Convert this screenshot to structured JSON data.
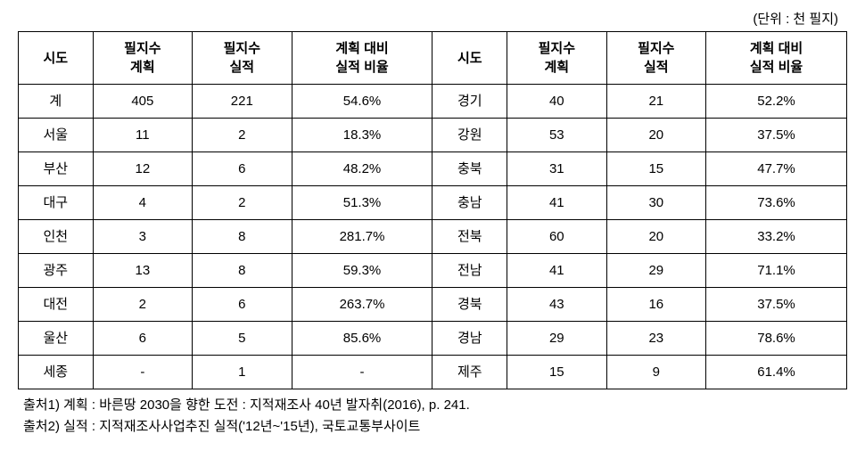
{
  "unitLabel": "(단위 : 천 필지)",
  "headers": {
    "sido": "시도",
    "plan": "필지수\n계획",
    "actual": "필지수\n실적",
    "ratio": "계획 대비\n실적 비율"
  },
  "rows": [
    {
      "l_sido": "계",
      "l_plan": "405",
      "l_actual": "221",
      "l_ratio": "54.6%",
      "r_sido": "경기",
      "r_plan": "40",
      "r_actual": "21",
      "r_ratio": "52.2%"
    },
    {
      "l_sido": "서울",
      "l_plan": "11",
      "l_actual": "2",
      "l_ratio": "18.3%",
      "r_sido": "강원",
      "r_plan": "53",
      "r_actual": "20",
      "r_ratio": "37.5%"
    },
    {
      "l_sido": "부산",
      "l_plan": "12",
      "l_actual": "6",
      "l_ratio": "48.2%",
      "r_sido": "충북",
      "r_plan": "31",
      "r_actual": "15",
      "r_ratio": "47.7%"
    },
    {
      "l_sido": "대구",
      "l_plan": "4",
      "l_actual": "2",
      "l_ratio": "51.3%",
      "r_sido": "충남",
      "r_plan": "41",
      "r_actual": "30",
      "r_ratio": "73.6%"
    },
    {
      "l_sido": "인천",
      "l_plan": "3",
      "l_actual": "8",
      "l_ratio": "281.7%",
      "r_sido": "전북",
      "r_plan": "60",
      "r_actual": "20",
      "r_ratio": "33.2%"
    },
    {
      "l_sido": "광주",
      "l_plan": "13",
      "l_actual": "8",
      "l_ratio": "59.3%",
      "r_sido": "전남",
      "r_plan": "41",
      "r_actual": "29",
      "r_ratio": "71.1%"
    },
    {
      "l_sido": "대전",
      "l_plan": "2",
      "l_actual": "6",
      "l_ratio": "263.7%",
      "r_sido": "경북",
      "r_plan": "43",
      "r_actual": "16",
      "r_ratio": "37.5%"
    },
    {
      "l_sido": "울산",
      "l_plan": "6",
      "l_actual": "5",
      "l_ratio": "85.6%",
      "r_sido": "경남",
      "r_plan": "29",
      "r_actual": "23",
      "r_ratio": "78.6%"
    },
    {
      "l_sido": "세종",
      "l_plan": "-",
      "l_actual": "1",
      "l_ratio": "-",
      "r_sido": "제주",
      "r_plan": "15",
      "r_actual": "9",
      "r_ratio": "61.4%"
    }
  ],
  "footnotes": {
    "n1": "출처1) 계획 : 바른땅 2030을 향한 도전 : 지적재조사 40년 발자취(2016), p. 241.",
    "n2": "출처2) 실적 : 지적재조사사업추진 실적('12년~'15년), 국토교통부사이트"
  }
}
